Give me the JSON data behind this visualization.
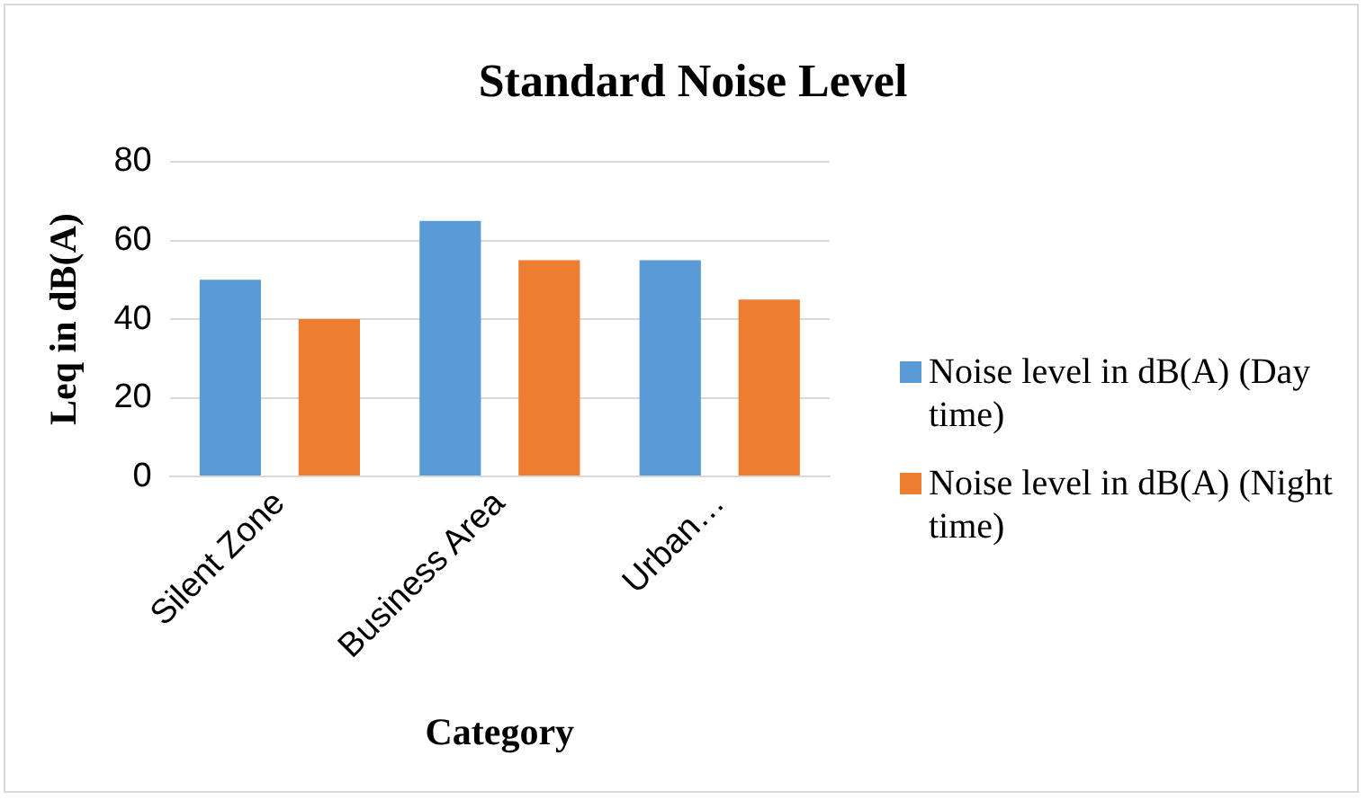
{
  "chart_data": {
    "type": "bar",
    "title": "Standard Noise Level",
    "xlabel": "Category",
    "ylabel": "Leq in dB(A)",
    "categories": [
      "Silent Zone",
      "Business Area",
      "Urban…"
    ],
    "series": [
      {
        "name": "Noise level in dB(A) (Day time)",
        "color": "#5b9bd5",
        "values": [
          50,
          65,
          55
        ]
      },
      {
        "name": "Noise level in dB(A) (Night time)",
        "color": "#ed7d31",
        "values": [
          40,
          55,
          45
        ]
      }
    ],
    "ylim": [
      0,
      80
    ],
    "yticks": [
      0,
      20,
      40,
      60,
      80
    ],
    "grid": "y",
    "legend": "right"
  }
}
